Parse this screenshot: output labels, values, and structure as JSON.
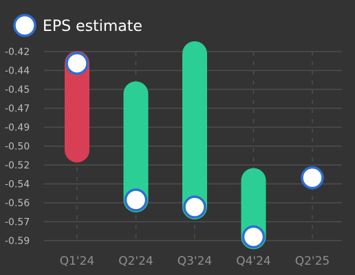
{
  "colors": {
    "background": "#333333",
    "grid": "#4e4e4e",
    "beat": "#2bcf95",
    "miss": "#d83e54",
    "marker_fill": "#ffffff",
    "marker_stroke": "#2f6ed0"
  },
  "chart_data": {
    "type": "range-bar",
    "legend": {
      "label": "EPS estimate",
      "placement": "top-left",
      "marker": "circle"
    },
    "categories": [
      "Q1'24",
      "Q2'24",
      "Q3'24",
      "Q4'24",
      "Q2'25"
    ],
    "y_tick_labels": [
      "-0.42",
      "-0.44",
      "-0.45",
      "-0.47",
      "-0.49",
      "-0.50",
      "-0.52",
      "-0.54",
      "-0.56",
      "-0.57",
      "-0.59"
    ],
    "ylim": [
      -0.5935,
      -0.4191
    ],
    "estimate": [
      -0.43,
      -0.556,
      -0.5625,
      -0.59,
      -0.5355
    ],
    "actual": [
      -0.51,
      -0.458,
      -0.421,
      -0.538,
      null
    ],
    "result": [
      "miss",
      "beat",
      "beat",
      "beat",
      null
    ],
    "grid": {
      "horizontal": true,
      "vertical": "dashed"
    }
  }
}
